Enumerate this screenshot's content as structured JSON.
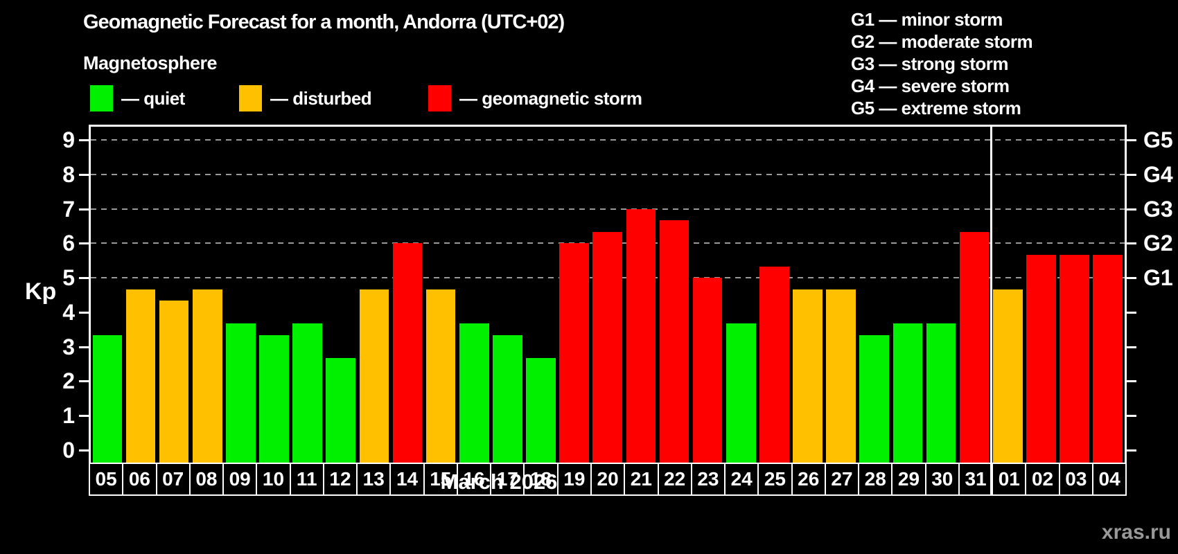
{
  "header": {
    "title": "Geomagnetic Forecast for a month, Andorra (UTC+02)",
    "subtitle": "Magnetosphere"
  },
  "legend": {
    "items": [
      {
        "key": "quiet",
        "label": "— quiet",
        "color": "#00f000"
      },
      {
        "key": "disturbed",
        "label": "— disturbed",
        "color": "#ffc000"
      },
      {
        "key": "storm",
        "label": "— geomagnetic storm",
        "color": "#ff0000"
      }
    ]
  },
  "g_legend": {
    "items": [
      "G1 — minor storm",
      "G2 — moderate storm",
      "G3 — strong storm",
      "G4 — severe storm",
      "G5 — extreme storm"
    ]
  },
  "chart_data": {
    "type": "bar",
    "title": "Geomagnetic Forecast for a month, Andorra (UTC+02)",
    "ylabel": "Kp",
    "xlabel": "March 2026",
    "ylim": [
      0,
      9
    ],
    "yticks": [
      0,
      1,
      2,
      3,
      4,
      5,
      6,
      7,
      8,
      9
    ],
    "grid_levels": [
      5,
      6,
      7,
      8,
      9
    ],
    "grid_on": true,
    "right_axis_labels": [
      {
        "value": 5,
        "label": "G1"
      },
      {
        "value": 6,
        "label": "G2"
      },
      {
        "value": 7,
        "label": "G3"
      },
      {
        "value": 8,
        "label": "G4"
      },
      {
        "value": 9,
        "label": "G5"
      }
    ],
    "categories": [
      "05",
      "06",
      "07",
      "08",
      "09",
      "10",
      "11",
      "12",
      "13",
      "14",
      "15",
      "16",
      "17",
      "18",
      "19",
      "20",
      "21",
      "22",
      "23",
      "24",
      "25",
      "26",
      "27",
      "28",
      "29",
      "30",
      "31",
      "01",
      "02",
      "03",
      "04"
    ],
    "values": [
      3.33,
      4.67,
      4.33,
      4.67,
      3.67,
      3.33,
      3.67,
      2.67,
      4.67,
      6,
      4.67,
      3.67,
      3.33,
      2.67,
      6,
      6.33,
      7,
      6.67,
      5,
      3.67,
      5.33,
      4.67,
      4.67,
      3.33,
      3.67,
      3.67,
      6.33,
      4.67,
      5.67,
      5.67,
      5.67
    ],
    "statuses": [
      "quiet",
      "disturbed",
      "disturbed",
      "disturbed",
      "quiet",
      "quiet",
      "quiet",
      "quiet",
      "disturbed",
      "storm",
      "disturbed",
      "quiet",
      "quiet",
      "quiet",
      "storm",
      "storm",
      "storm",
      "storm",
      "storm",
      "quiet",
      "storm",
      "disturbed",
      "disturbed",
      "quiet",
      "quiet",
      "quiet",
      "storm",
      "disturbed",
      "storm",
      "storm",
      "storm"
    ],
    "colors": {
      "quiet": "#00f000",
      "disturbed": "#ffc000",
      "storm": "#ff0000"
    },
    "month_separator_after_index": 26,
    "legend_position": "top"
  },
  "footer": {
    "xaxis_label": "March 2026",
    "watermark": "xras.ru"
  }
}
